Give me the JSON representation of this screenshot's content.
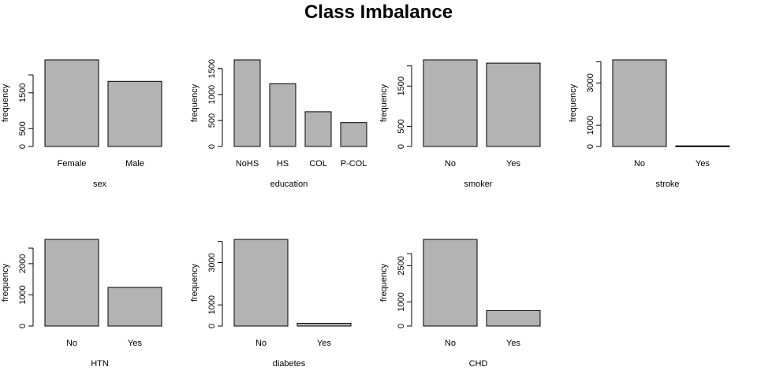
{
  "figure": {
    "title": "Class Imbalance"
  },
  "colors": {
    "bar_fill": "#b3b3b3",
    "bar_stroke": "#000000",
    "axis": "#000000"
  },
  "chart_data": [
    {
      "type": "bar",
      "xlabel": "sex",
      "ylabel": "frequency",
      "categories": [
        "Female",
        "Male"
      ],
      "values": [
        2420,
        1820
      ],
      "ylim": [
        0,
        2420
      ],
      "yticks": [
        0,
        500,
        1500
      ],
      "ytick_labels": [
        "0",
        "500",
        "1500"
      ],
      "yaxis_top": 2000
    },
    {
      "type": "bar",
      "xlabel": "education",
      "ylabel": "frequency",
      "categories": [
        "NoHS",
        "HS",
        "COL",
        "P-COL"
      ],
      "values": [
        1670,
        1210,
        670,
        460
      ],
      "ylim": [
        0,
        1670
      ],
      "yticks": [
        0,
        500,
        1000,
        1500
      ],
      "ytick_labels": [
        "0",
        "500",
        "1000",
        "1500"
      ],
      "yaxis_top": 1500
    },
    {
      "type": "bar",
      "xlabel": "smoker",
      "ylabel": "frequency",
      "categories": [
        "No",
        "Yes"
      ],
      "values": [
        2150,
        2070
      ],
      "ylim": [
        0,
        2150
      ],
      "yticks": [
        0,
        500,
        1500
      ],
      "ytick_labels": [
        "0",
        "500",
        "1500"
      ],
      "yaxis_top": 2000
    },
    {
      "type": "bar",
      "xlabel": "stroke",
      "ylabel": "frequency",
      "categories": [
        "No",
        "Yes"
      ],
      "values": [
        4090,
        30
      ],
      "ylim": [
        0,
        4090
      ],
      "yticks": [
        0,
        1000,
        3000
      ],
      "ytick_labels": [
        "0",
        "1000",
        "3000"
      ],
      "yaxis_top": 4000
    },
    {
      "type": "bar",
      "xlabel": "HTN",
      "ylabel": "frequency",
      "categories": [
        "No",
        "Yes"
      ],
      "values": [
        2780,
        1240
      ],
      "ylim": [
        0,
        2780
      ],
      "yticks": [
        0,
        1000,
        2000
      ],
      "ytick_labels": [
        "0",
        "1000",
        "2000"
      ],
      "yaxis_top": 2500
    },
    {
      "type": "bar",
      "xlabel": "diabetes",
      "ylabel": "frequency",
      "categories": [
        "No",
        "Yes"
      ],
      "values": [
        4100,
        130
      ],
      "ylim": [
        0,
        4100
      ],
      "yticks": [
        0,
        1000,
        3000
      ],
      "ytick_labels": [
        "0",
        "1000",
        "3000"
      ],
      "yaxis_top": 4000
    },
    {
      "type": "bar",
      "xlabel": "CHD",
      "ylabel": "frequency",
      "categories": [
        "No",
        "Yes"
      ],
      "values": [
        3590,
        640
      ],
      "ylim": [
        0,
        3590
      ],
      "yticks": [
        0,
        1000,
        2500
      ],
      "ytick_labels": [
        "0",
        "1000",
        "2500"
      ],
      "yaxis_top": 3000
    }
  ]
}
